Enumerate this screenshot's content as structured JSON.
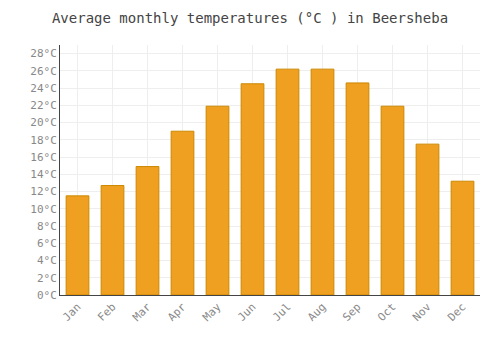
{
  "chart_data": {
    "type": "bar",
    "title": "Average monthly temperatures (°C ) in Beersheba",
    "categories": [
      "Jan",
      "Feb",
      "Mar",
      "Apr",
      "May",
      "Jun",
      "Jul",
      "Aug",
      "Sep",
      "Oct",
      "Nov",
      "Dec"
    ],
    "values": [
      11.5,
      12.7,
      14.9,
      19.0,
      21.9,
      24.5,
      26.2,
      26.2,
      24.6,
      21.9,
      17.5,
      13.2
    ],
    "color": "#F0A020",
    "ylim": [
      0,
      29
    ],
    "yticks": [
      {
        "value": 0,
        "label": "0°C"
      },
      {
        "value": 2,
        "label": "2°C"
      },
      {
        "value": 4,
        "label": "4°C"
      },
      {
        "value": 6,
        "label": "6°C"
      },
      {
        "value": 8,
        "label": "8°C"
      },
      {
        "value": 10,
        "label": "10°C"
      },
      {
        "value": 12,
        "label": "12°C"
      },
      {
        "value": 14,
        "label": "14°C"
      },
      {
        "value": 16,
        "label": "16°C"
      },
      {
        "value": 18,
        "label": "18°C"
      },
      {
        "value": 20,
        "label": "20°C"
      },
      {
        "value": 22,
        "label": "22°C"
      },
      {
        "value": 24,
        "label": "24°C"
      },
      {
        "value": 26,
        "label": "26°C"
      },
      {
        "value": 28,
        "label": "28°C"
      }
    ],
    "grid": true
  }
}
